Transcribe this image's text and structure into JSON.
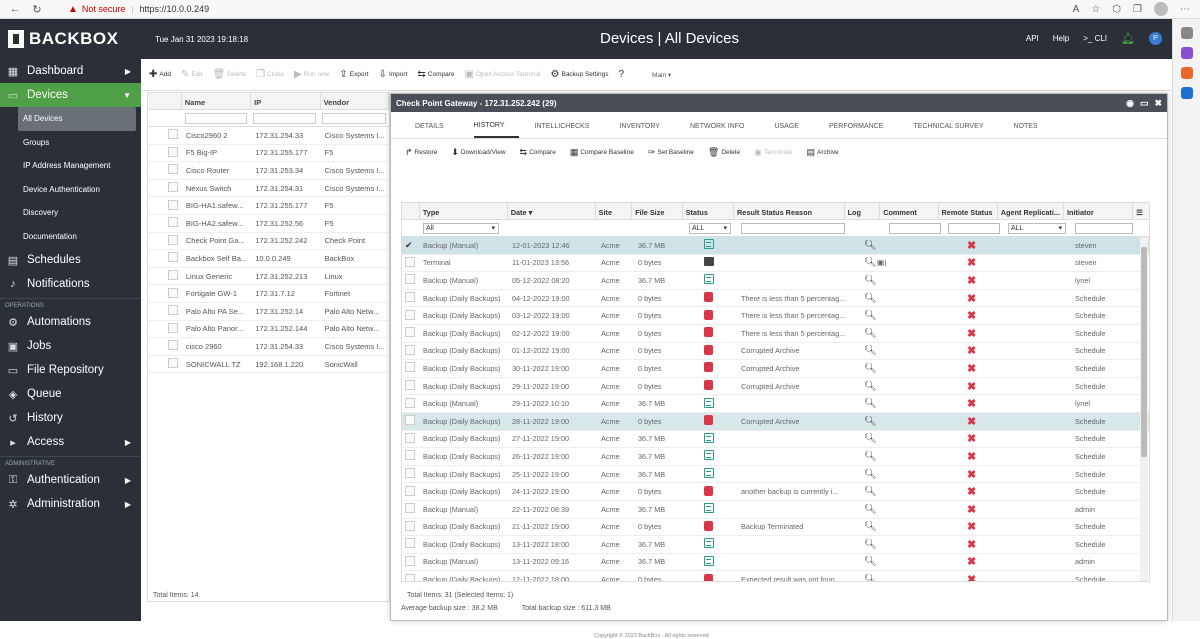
{
  "browser": {
    "not_secure": "Not secure",
    "url": "https://10.0.0.249"
  },
  "app": {
    "brand": "BACKBOX",
    "datetime": "Tue Jan 31 2023 19:18:18",
    "page_title": "Devices | All Devices",
    "nav": {
      "api": "API",
      "help": "Help",
      "cli": ">_ CLI",
      "avatar": "P"
    }
  },
  "sidebar": {
    "items": [
      {
        "label": "Dashboard",
        "icon": "dashboard-icon"
      },
      {
        "label": "Devices",
        "icon": "devices-icon"
      }
    ],
    "device_sub": [
      "All Devices",
      "Groups",
      "IP Address Management",
      "Device Authentication",
      "Discovery",
      "Documentation"
    ],
    "main": [
      {
        "label": "Schedules"
      },
      {
        "label": "Notifications"
      }
    ],
    "operations_header": "OPERATIONS",
    "ops": [
      {
        "label": "Automations"
      },
      {
        "label": "Jobs"
      },
      {
        "label": "File Repository"
      },
      {
        "label": "Queue"
      },
      {
        "label": "History"
      },
      {
        "label": "Access"
      }
    ],
    "admin_header": "ADMINISTRATIVE",
    "admin": [
      {
        "label": "Authentication"
      },
      {
        "label": "Administration"
      }
    ]
  },
  "toolbar": {
    "add": "Add",
    "edit": "Edit",
    "delete": "Delete",
    "clone": "Clone",
    "run_now": "Run now",
    "export": "Export",
    "import": "Import",
    "compare": "Compare",
    "open_access": "Open Access Terminal",
    "backup_settings": "Backup Settings",
    "view": "Main"
  },
  "device_grid": {
    "columns": [
      "Name",
      "IP",
      "Vendor"
    ],
    "rows": [
      [
        "Cisco2960 2",
        "172.31.254.33",
        "Cisco Systems I..."
      ],
      [
        "F5 Big-IP",
        "172.31.255.177",
        "F5"
      ],
      [
        "Cisco Router",
        "172.31.253.34",
        "Cisco Systems I..."
      ],
      [
        "Nexus Switch",
        "172.31.254.31",
        "Cisco Systems I..."
      ],
      [
        "BIG-HA1.safew...",
        "172.31.255.177",
        "F5"
      ],
      [
        "BIG-HA2.safew...",
        "172.31.252.56",
        "F5"
      ],
      [
        "Check Point Ga...",
        "172.31.252.242",
        "Check Point"
      ],
      [
        "Backbox Self Ba...",
        "10.0.0.249",
        "BackBox"
      ],
      [
        "Linux Generic",
        "172.31.252.213",
        "Linux"
      ],
      [
        "Fortigate GW-1",
        "172.31.7.12",
        "Fortinet"
      ],
      [
        "Palo Alto PA Se...",
        "172.31.252.14",
        "Palo Alto Netw..."
      ],
      [
        "Palo Alto Panor...",
        "172.31.252.144",
        "Palo Alto Netw..."
      ],
      [
        "cisco 2960",
        "172.31.254.33",
        "Cisco Systems I..."
      ],
      [
        "SONICWALL TZ",
        "192.168.1.220",
        "SonicWall"
      ]
    ],
    "total": "Total Items: 14"
  },
  "modal": {
    "title": "Check Point Gateway - 172.31.252.242 (29)",
    "tabs": [
      "DETAILS",
      "HISTORY",
      "INTELLICHECKS",
      "INVENTORY",
      "NETWORK INFO",
      "USAGE",
      "PERFORMANCE",
      "TECHNICAL SURVEY",
      "NOTES"
    ],
    "active_tab": "HISTORY",
    "actions": [
      "Restore",
      "Download/View",
      "Compare",
      "Compare Baseline",
      "Set Baseline",
      "Delete",
      "Terminate",
      "Archive"
    ],
    "columns": [
      "Type",
      "Date",
      "Site",
      "File Size",
      "Status",
      "Result Status Reason",
      "Log",
      "Comment",
      "Remote Status",
      "Agent Replicati...",
      "Initiator"
    ],
    "filters": {
      "type": "All",
      "status": "ALL",
      "agent": "ALL"
    },
    "rows": [
      {
        "type": "Backup (Manual)",
        "date": "12-01-2023 12:46",
        "site": "Acme",
        "size": "36.7 MB",
        "status": "ok",
        "reason": "",
        "initiator": "steven",
        "sel": true
      },
      {
        "type": "Terminal",
        "date": "11-01-2023 13:56",
        "site": "Acme",
        "size": "0 bytes",
        "status": "term",
        "reason": "",
        "initiator": "steven"
      },
      {
        "type": "Backup (Manual)",
        "date": "05-12-2022 08:20",
        "site": "Acme",
        "size": "36.7 MB",
        "status": "ok",
        "reason": "",
        "initiator": "lynel"
      },
      {
        "type": "Backup (Daily Backups)",
        "date": "04-12-2022 19:00",
        "site": "Acme",
        "size": "0 bytes",
        "status": "err",
        "reason": "There is less than 5 percentag...",
        "initiator": "Schedule"
      },
      {
        "type": "Backup (Daily Backups)",
        "date": "03-12-2022 19:00",
        "site": "Acme",
        "size": "0 bytes",
        "status": "err",
        "reason": "There is less than 5 percentag...",
        "initiator": "Schedule"
      },
      {
        "type": "Backup (Daily Backups)",
        "date": "02-12-2022 19:00",
        "site": "Acme",
        "size": "0 bytes",
        "status": "err",
        "reason": "There is less than 5 percentag...",
        "initiator": "Schedule"
      },
      {
        "type": "Backup (Daily Backups)",
        "date": "01-12-2022 19:00",
        "site": "Acme",
        "size": "0 bytes",
        "status": "err",
        "reason": "Corrupted Archive",
        "initiator": "Schedule"
      },
      {
        "type": "Backup (Daily Backups)",
        "date": "30-11-2022 19:00",
        "site": "Acme",
        "size": "0 bytes",
        "status": "err",
        "reason": "Corrupted Archive",
        "initiator": "Schedule"
      },
      {
        "type": "Backup (Daily Backups)",
        "date": "29-11-2022 19:00",
        "site": "Acme",
        "size": "0 bytes",
        "status": "err",
        "reason": "Corrupted Archive",
        "initiator": "Schedule"
      },
      {
        "type": "Backup (Manual)",
        "date": "29-11-2022 10:10",
        "site": "Acme",
        "size": "36.7 MB",
        "status": "ok",
        "reason": "",
        "initiator": "lynel"
      },
      {
        "type": "Backup (Daily Backups)",
        "date": "28-11-2022 19:00",
        "site": "Acme",
        "size": "0 bytes",
        "status": "err",
        "reason": "Corrupted Archive",
        "initiator": "Schedule",
        "hi": true
      },
      {
        "type": "Backup (Daily Backups)",
        "date": "27-11-2022 19:00",
        "site": "Acme",
        "size": "36.7 MB",
        "status": "ok",
        "reason": "",
        "initiator": "Schedule"
      },
      {
        "type": "Backup (Daily Backups)",
        "date": "26-11-2022 19:00",
        "site": "Acme",
        "size": "36.7 MB",
        "status": "ok",
        "reason": "",
        "initiator": "Schedule"
      },
      {
        "type": "Backup (Daily Backups)",
        "date": "25-11-2022 19:00",
        "site": "Acme",
        "size": "36.7 MB",
        "status": "ok",
        "reason": "",
        "initiator": "Schedule"
      },
      {
        "type": "Backup (Daily Backups)",
        "date": "24-11-2022 19:00",
        "site": "Acme",
        "size": "0 bytes",
        "status": "err",
        "reason": "another backup is currently i...",
        "initiator": "Schedule"
      },
      {
        "type": "Backup (Manual)",
        "date": "22-11-2022 08:39",
        "site": "Acme",
        "size": "36.7 MB",
        "status": "ok",
        "reason": "",
        "initiator": "admin"
      },
      {
        "type": "Backup (Daily Backups)",
        "date": "21-11-2022 19:00",
        "site": "Acme",
        "size": "0 bytes",
        "status": "err",
        "reason": "Backup Terminated",
        "initiator": "Schedule"
      },
      {
        "type": "Backup (Daily Backups)",
        "date": "13-11-2022 18:00",
        "site": "Acme",
        "size": "36.7 MB",
        "status": "ok",
        "reason": "",
        "initiator": "Schedule"
      },
      {
        "type": "Backup (Manual)",
        "date": "13-11-2022 09:16",
        "site": "Acme",
        "size": "36.7 MB",
        "status": "ok",
        "reason": "",
        "initiator": "admin"
      },
      {
        "type": "Backup (Daily Backups)",
        "date": "12-11-2022 18:00",
        "site": "Acme",
        "size": "0 bytes",
        "status": "err",
        "reason": "Expected result was not foun...",
        "initiator": "Schedule"
      }
    ],
    "footer": "Total Items: 31 (Selected Items: 1)",
    "avg": "Average backup size : 38.2 MB",
    "total_size": "Total backup size : 611.3 MB"
  },
  "copyright": "Copyright © 2023 BackBox - All rights reserved"
}
